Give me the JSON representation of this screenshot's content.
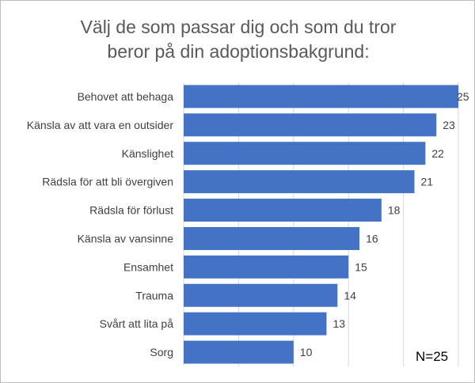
{
  "chart_data": {
    "type": "bar",
    "orientation": "horizontal",
    "title": "Välj de som passar dig och som du tror beror på din adoptionsbakgrund:",
    "title_lines": [
      "Välj de som passar dig och som du tror",
      "beror på din adoptionsbakgrund:"
    ],
    "categories": [
      "Behovet att behaga",
      "Känsla av att vara en outsider",
      "Känslighet",
      "Rädsla för att bli övergiven",
      "Rädsla för förlust",
      "Känsla av vansinne",
      "Ensamhet",
      "Trauma",
      "Svårt att lita på",
      "Sorg"
    ],
    "values": [
      25,
      23,
      22,
      21,
      18,
      16,
      15,
      14,
      13,
      10
    ],
    "xlim": [
      0,
      25
    ],
    "grid": true,
    "grid_step": 5,
    "bar_color": "#4472C4",
    "annotation": "N=25"
  }
}
